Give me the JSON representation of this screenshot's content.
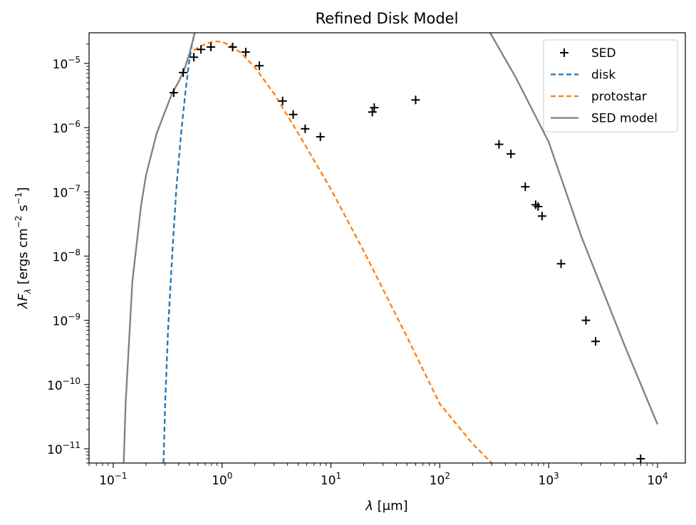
{
  "chart_data": {
    "type": "scatter",
    "title": "Refined Disk Model",
    "xlabel": {
      "lambda": "λ",
      "unit": " [μm]"
    },
    "ylabel": {
      "prefix": "λF",
      "sub": "λ",
      "text": " [ergs cm",
      "exp1": "−2",
      "mid": " s",
      "exp2": "−1",
      "end": "]"
    },
    "xscale": "log",
    "yscale": "log",
    "xlim": [
      0.06,
      18000
    ],
    "ylim": [
      6e-12,
      3e-05
    ],
    "grid": false,
    "legend_position": "top-right",
    "x_ticks": [
      {
        "value": 0.1,
        "base": "10",
        "exp": "−1"
      },
      {
        "value": 1,
        "base": "10",
        "exp": "0"
      },
      {
        "value": 10,
        "base": "10",
        "exp": "1"
      },
      {
        "value": 100,
        "base": "10",
        "exp": "2"
      },
      {
        "value": 1000,
        "base": "10",
        "exp": "3"
      },
      {
        "value": 10000,
        "base": "10",
        "exp": "4"
      }
    ],
    "y_ticks": [
      {
        "value": 1e-11,
        "base": "10",
        "exp": "−11"
      },
      {
        "value": 1e-10,
        "base": "10",
        "exp": "−10"
      },
      {
        "value": 1e-09,
        "base": "10",
        "exp": "−9"
      },
      {
        "value": 1e-08,
        "base": "10",
        "exp": "−8"
      },
      {
        "value": 1e-07,
        "base": "10",
        "exp": "−7"
      },
      {
        "value": 1e-06,
        "base": "10",
        "exp": "−6"
      },
      {
        "value": 1e-05,
        "base": "10",
        "exp": "−5"
      }
    ],
    "series": [
      {
        "name": "SED",
        "kind": "markers",
        "marker": "+",
        "color": "#000000",
        "x": [
          0.36,
          0.44,
          0.55,
          0.64,
          0.79,
          1.25,
          1.65,
          2.2,
          3.6,
          4.5,
          5.8,
          8.0,
          24,
          25,
          60,
          350,
          450,
          610,
          760,
          800,
          870,
          1300,
          2200,
          2700,
          7000
        ],
        "y": [
          3.5e-06,
          7.2e-06,
          1.25e-05,
          1.65e-05,
          1.8e-05,
          1.8e-05,
          1.5e-05,
          9.2e-06,
          2.6e-06,
          1.6e-06,
          9.6e-07,
          7.2e-07,
          1.75e-06,
          2.05e-06,
          2.7e-06,
          5.5e-07,
          3.9e-07,
          1.2e-07,
          6.3e-08,
          5.9e-08,
          4.2e-08,
          7.6e-09,
          1e-09,
          4.7e-10,
          7e-12
        ]
      },
      {
        "name": "disk",
        "kind": "line",
        "dash": "dashed",
        "color": "#1f77b4",
        "x": [
          0.29,
          0.3,
          0.32,
          0.35,
          0.38,
          0.42,
          0.46,
          0.5,
          0.53,
          0.56
        ],
        "y": [
          6e-12,
          5e-11,
          8e-10,
          1.2e-08,
          1.1e-07,
          8e-07,
          3.5e-06,
          1.1e-05,
          2e-05,
          3e-05
        ]
      },
      {
        "name": "protostar",
        "kind": "line",
        "dash": "dashed",
        "color": "#ff7f0e",
        "x": [
          0.55,
          0.6,
          0.7,
          0.8,
          0.9,
          1.0,
          1.2,
          1.5,
          2.0,
          3.0,
          5.0,
          10,
          20,
          50,
          100,
          200,
          300
        ],
        "y": [
          1.6e-05,
          1.75e-05,
          2e-05,
          2.15e-05,
          2.2e-05,
          2.15e-05,
          1.9e-05,
          1.45e-05,
          8.7e-06,
          3.4e-06,
          8.2e-07,
          1.1e-07,
          1.2e-08,
          5.5e-10,
          5e-11,
          1.2e-11,
          6e-12
        ]
      },
      {
        "name": "SED model",
        "kind": "line",
        "dash": "solid",
        "color": "#7f7f7f",
        "x": [
          0.125,
          0.13,
          0.15,
          0.18,
          0.2,
          0.25,
          0.3,
          0.35,
          0.4,
          0.45,
          0.5,
          0.54,
          0.56
        ],
        "y": [
          6e-12,
          5e-11,
          4e-09,
          6e-08,
          1.8e-07,
          8e-07,
          1.8e-06,
          3.5e-06,
          5.2e-06,
          8e-06,
          1.4e-05,
          2.3e-05,
          3e-05
        ]
      },
      {
        "name": "",
        "kind": "line",
        "dash": "solid",
        "color": "#7f7f7f",
        "legend": false,
        "x": [
          290,
          500,
          1000,
          2000,
          5000,
          10000
        ],
        "y": [
          3e-05,
          6e-06,
          6e-07,
          2e-08,
          4e-10,
          2.4e-11
        ]
      }
    ]
  }
}
